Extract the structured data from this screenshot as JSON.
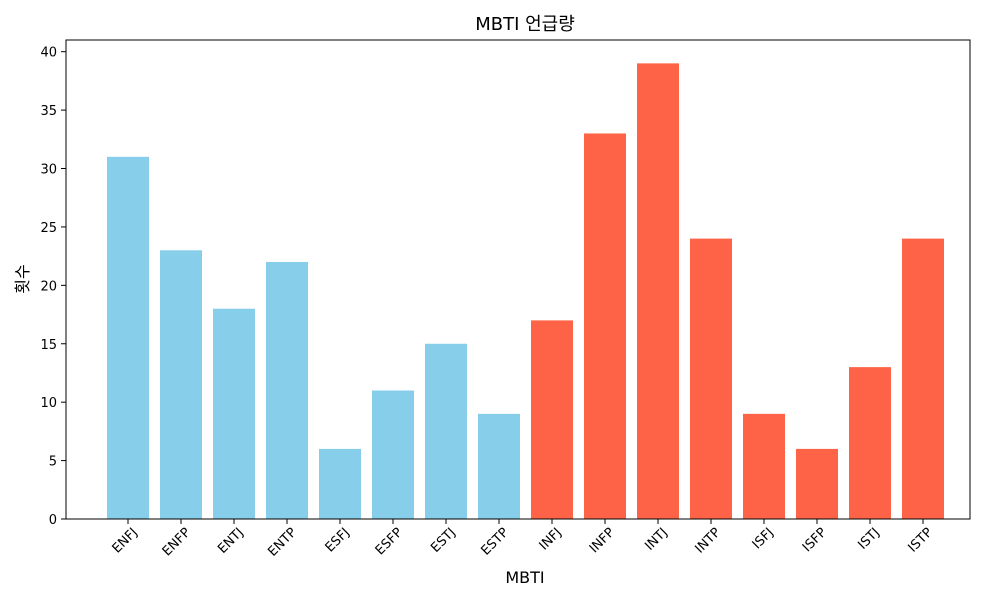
{
  "chart_data": {
    "type": "bar",
    "title": "MBTI 언급량",
    "xlabel": "MBTI",
    "ylabel": "횟수",
    "categories": [
      "ENFJ",
      "ENFP",
      "ENTJ",
      "ENTP",
      "ESFJ",
      "ESFP",
      "ESTJ",
      "ESTP",
      "INFJ",
      "INFP",
      "INTJ",
      "INTP",
      "ISFJ",
      "ISFP",
      "ISTJ",
      "ISTP"
    ],
    "values": [
      31,
      23,
      18,
      22,
      6,
      11,
      15,
      9,
      17,
      33,
      39,
      24,
      9,
      6,
      13,
      24
    ],
    "bar_colors": [
      "#87CEEB",
      "#87CEEB",
      "#87CEEB",
      "#87CEEB",
      "#87CEEB",
      "#87CEEB",
      "#87CEEB",
      "#87CEEB",
      "#FF6347",
      "#FF6347",
      "#FF6347",
      "#FF6347",
      "#FF6347",
      "#FF6347",
      "#FF6347",
      "#FF6347"
    ],
    "ylim": [
      0,
      41
    ],
    "yticks": [
      0,
      5,
      10,
      15,
      20,
      25,
      30,
      35,
      40
    ],
    "grid": false,
    "legend": "none"
  }
}
